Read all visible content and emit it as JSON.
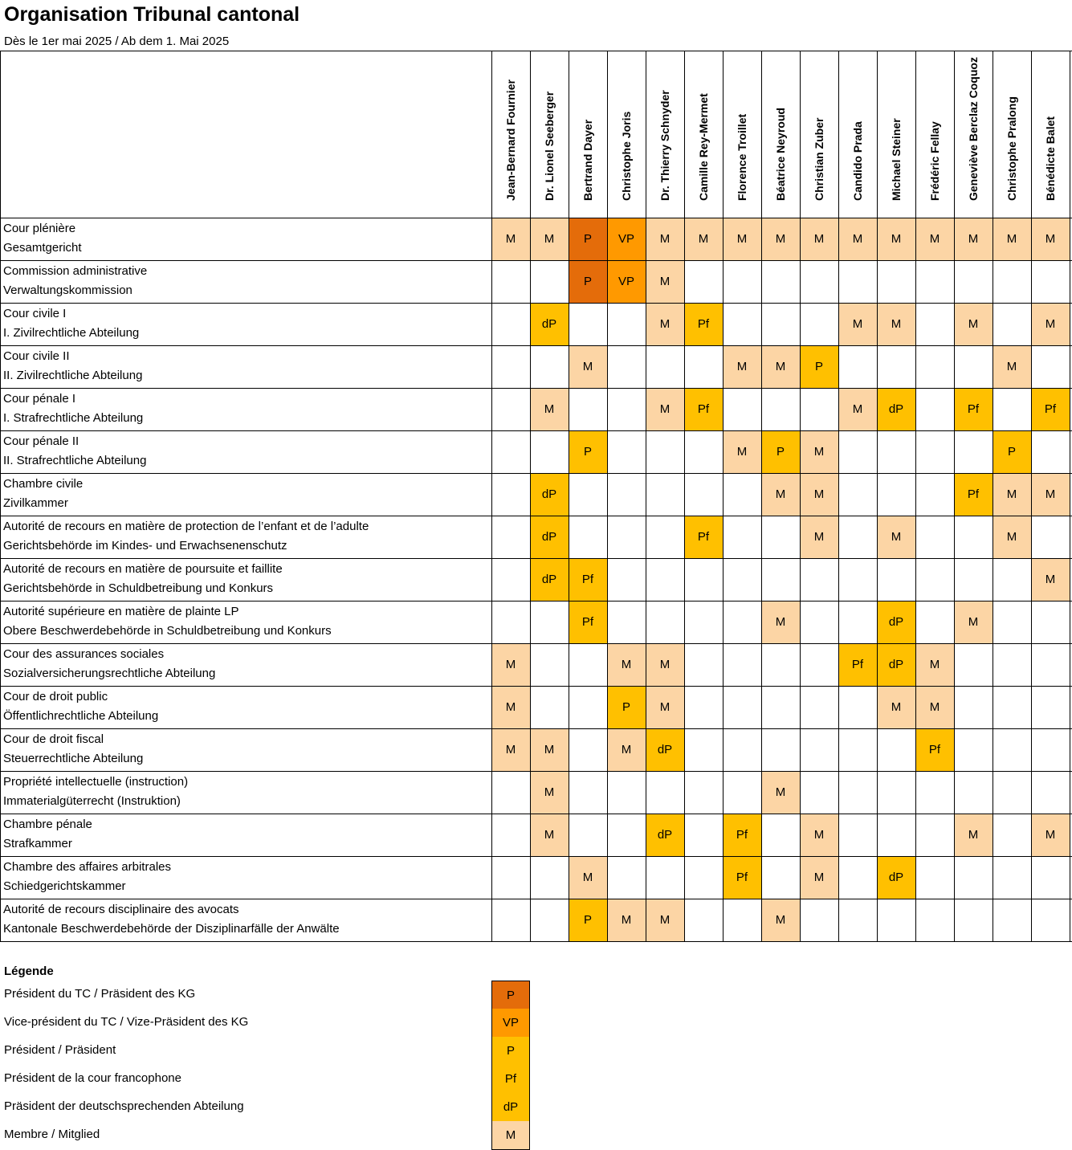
{
  "title": "Organisation Tribunal cantonal",
  "subtitle": "Dès le 1er mai 2025 / Ab dem 1. Mai 2025",
  "colors": {
    "P_TC": "#E46C0A",
    "VP": "#FF9900",
    "P": "#FFC000",
    "Pf": "#FFC000",
    "dP": "#FFC000",
    "M": "#FCD5A5"
  },
  "members": [
    "Jean-Bernard Fournier",
    "Dr. Lionel Seeberger",
    "Bertrand Dayer",
    "Christophe Joris",
    "Dr. Thierry Schnyder",
    "Camille Rey-Mermet",
    "Florence Troillet",
    "Béatrice Neyroud",
    "Christian Zuber",
    "Candido Prada",
    "Michael Steiner",
    "Frédéric Fellay",
    "Geneviève Berclaz Coquoz",
    "Christophe Pralong",
    "Bénédicte Balet"
  ],
  "rows": [
    {
      "fr": "Cour plénière",
      "de": "Gesamtgericht",
      "cells": [
        "M",
        "M",
        "P_TC",
        "VP",
        "M",
        "M",
        "M",
        "M",
        "M",
        "M",
        "M",
        "M",
        "M",
        "M",
        "M"
      ]
    },
    {
      "fr": "Commission administrative",
      "de": "Verwaltungskommission",
      "cells": [
        "",
        "",
        "P_TC",
        "VP",
        "M",
        "",
        "",
        "",
        "",
        "",
        "",
        "",
        "",
        "",
        ""
      ]
    },
    {
      "fr": "Cour civile I",
      "de": "I. Zivilrechtliche Abteilung",
      "cells": [
        "",
        "dP",
        "",
        "",
        "M",
        "Pf",
        "",
        "",
        "",
        "M",
        "M",
        "",
        "M",
        "",
        "M"
      ]
    },
    {
      "fr": "Cour civile II",
      "de": "II. Zivilrechtliche Abteilung",
      "cells": [
        "",
        "",
        "M",
        "",
        "",
        "",
        "M",
        "M",
        "P",
        "",
        "",
        "",
        "",
        "M",
        ""
      ]
    },
    {
      "fr": "Cour pénale I",
      "de": "I. Strafrechtliche Abteilung",
      "cells": [
        "",
        "M",
        "",
        "",
        "M",
        "Pf",
        "",
        "",
        "",
        "M",
        "dP",
        "",
        "Pf",
        "",
        "Pf"
      ]
    },
    {
      "fr": "Cour pénale II",
      "de": "II. Strafrechtliche Abteilung",
      "cells": [
        "",
        "",
        "P",
        "",
        "",
        "",
        "M",
        "P",
        "M",
        "",
        "",
        "",
        "",
        "P",
        ""
      ]
    },
    {
      "fr": "Chambre civile",
      "de": "Zivilkammer",
      "cells": [
        "",
        "dP",
        "",
        "",
        "",
        "",
        "",
        "M",
        "M",
        "",
        "",
        "",
        "Pf",
        "M",
        "M"
      ]
    },
    {
      "fr": "Autorité de recours en matière de protection de l’enfant et de l’adulte",
      "de": "Gerichtsbehörde im Kindes- und Erwachsenenschutz",
      "cells": [
        "",
        "dP",
        "",
        "",
        "",
        "Pf",
        "",
        "",
        "M",
        "",
        "M",
        "",
        "",
        "M",
        ""
      ]
    },
    {
      "fr": "Autorité de recours en matière de poursuite et faillite",
      "de": "Gerichtsbehörde in Schuldbetreibung und Konkurs",
      "cells": [
        "",
        "dP",
        "Pf",
        "",
        "",
        "",
        "",
        "",
        "",
        "",
        "",
        "",
        "",
        "",
        "M"
      ]
    },
    {
      "fr": "Autorité supérieure en matière de plainte LP",
      "de": "Obere Beschwerdebehörde in Schuldbetreibung und Konkurs",
      "cells": [
        "",
        "",
        "Pf",
        "",
        "",
        "",
        "",
        "M",
        "",
        "",
        "dP",
        "",
        "M",
        "",
        ""
      ]
    },
    {
      "fr": "Cour des assurances sociales",
      "de": "Sozialversicherungsrechtliche Abteilung",
      "cells": [
        "M",
        "",
        "",
        "M",
        "M",
        "",
        "",
        "",
        "",
        "Pf",
        "dP",
        "M",
        "",
        "",
        ""
      ]
    },
    {
      "fr": "Cour de droit public",
      "de": "Öffentlichrechtliche Abteilung",
      "cells": [
        "M",
        "",
        "",
        "P",
        "M",
        "",
        "",
        "",
        "",
        "",
        "M",
        "M",
        "",
        "",
        ""
      ]
    },
    {
      "fr": "Cour de droit fiscal",
      "de": "Steuerrechtliche Abteilung",
      "cells": [
        "M",
        "M",
        "",
        "M",
        "dP",
        "",
        "",
        "",
        "",
        "",
        "",
        "Pf",
        "",
        "",
        ""
      ]
    },
    {
      "fr": "Propriété intellectuelle (instruction)",
      "de": "Immaterialgüterrecht (Instruktion)",
      "cells": [
        "",
        "M",
        "",
        "",
        "",
        "",
        "",
        "M",
        "",
        "",
        "",
        "",
        "",
        "",
        ""
      ]
    },
    {
      "fr": "Chambre pénale",
      "de": "Strafkammer",
      "cells": [
        "",
        "M",
        "",
        "",
        "dP",
        "",
        "Pf",
        "",
        "M",
        "",
        "",
        "",
        "M",
        "",
        "M"
      ]
    },
    {
      "fr": "Chambre des affaires arbitrales",
      "de": "Schiedgerichtskammer",
      "cells": [
        "",
        "",
        "M",
        "",
        "",
        "",
        "Pf",
        "",
        "M",
        "",
        "dP",
        "",
        "",
        "",
        ""
      ]
    },
    {
      "fr": "Autorité de recours disciplinaire des avocats",
      "de": "Kantonale Beschwerdebehörde der Disziplinarfälle der Anwälte",
      "cells": [
        "",
        "",
        "P",
        "M",
        "M",
        "",
        "",
        "M",
        "",
        "",
        "",
        "",
        "",
        "",
        ""
      ]
    }
  ],
  "cell_text": {
    "P_TC": "P",
    "VP": "VP",
    "P": "P",
    "Pf": "Pf",
    "dP": "dP",
    "M": "M"
  },
  "legend": {
    "title": "Légende",
    "items": [
      {
        "label": "Président du TC / Präsident des KG",
        "code": "P",
        "key": "P_TC"
      },
      {
        "label": "Vice-président du TC / Vize-Präsident des KG",
        "code": "VP",
        "key": "VP"
      },
      {
        "label": "Président / Präsident",
        "code": "P",
        "key": "P"
      },
      {
        "label": "Président de la cour francophone",
        "code": "Pf",
        "key": "Pf"
      },
      {
        "label": "Präsident der deutschsprechenden Abteilung",
        "code": "dP",
        "key": "dP"
      },
      {
        "label": "Membre / Mitglied",
        "code": "M",
        "key": "M"
      }
    ]
  }
}
